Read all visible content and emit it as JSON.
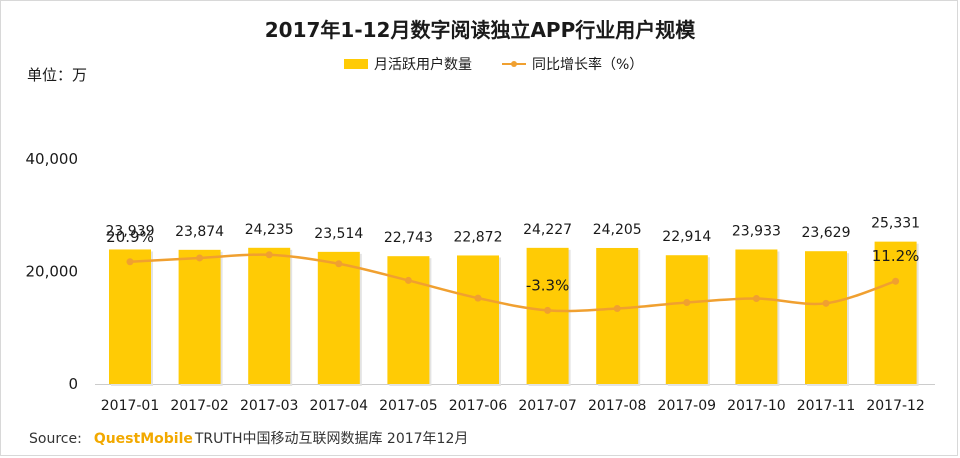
{
  "chart_data": {
    "type": "bar",
    "title": "2017年1-12月数字阅读独立APP行业用户规模",
    "unit_label": "单位：万",
    "categories": [
      "2017-01",
      "2017-02",
      "2017-03",
      "2017-04",
      "2017-05",
      "2017-06",
      "2017-07",
      "2017-08",
      "2017-09",
      "2017-10",
      "2017-11",
      "2017-12"
    ],
    "series": [
      {
        "name": "月活跃用户数量",
        "type": "bar",
        "values": [
          23939,
          23874,
          24235,
          23514,
          22743,
          22872,
          24227,
          24205,
          22914,
          23933,
          23629,
          25331
        ],
        "value_labels": [
          "23,939",
          "23,874",
          "24,235",
          "23,514",
          "22,743",
          "22,872",
          "24,227",
          "24,205",
          "22,914",
          "23,933",
          "23,629",
          "25,331"
        ],
        "color": "#FFCB05"
      },
      {
        "name": "同比增长率（%）",
        "type": "line",
        "values": [
          20.9,
          22.8,
          24.4,
          19.9,
          11.6,
          2.8,
          -3.3,
          -2.4,
          0.6,
          2.6,
          0.2,
          11.2
        ],
        "point_labels": {
          "0": "20.9%",
          "6": "-3.3%",
          "11": "11.2%"
        },
        "color": "#F0A030",
        "secondary_axis": true,
        "secondary_ylim": [
          -40,
          100
        ]
      }
    ],
    "ylim": [
      0,
      50000
    ],
    "yticks": [
      0,
      20000,
      40000
    ],
    "ytick_labels": [
      "0",
      "20,000",
      "40,000"
    ],
    "grid": false,
    "legend_position": "top"
  },
  "source": {
    "prefix": "Source:",
    "brand": "QuestMobile",
    "text": "TRUTH中国移动互联网数据库 2017年12月"
  }
}
